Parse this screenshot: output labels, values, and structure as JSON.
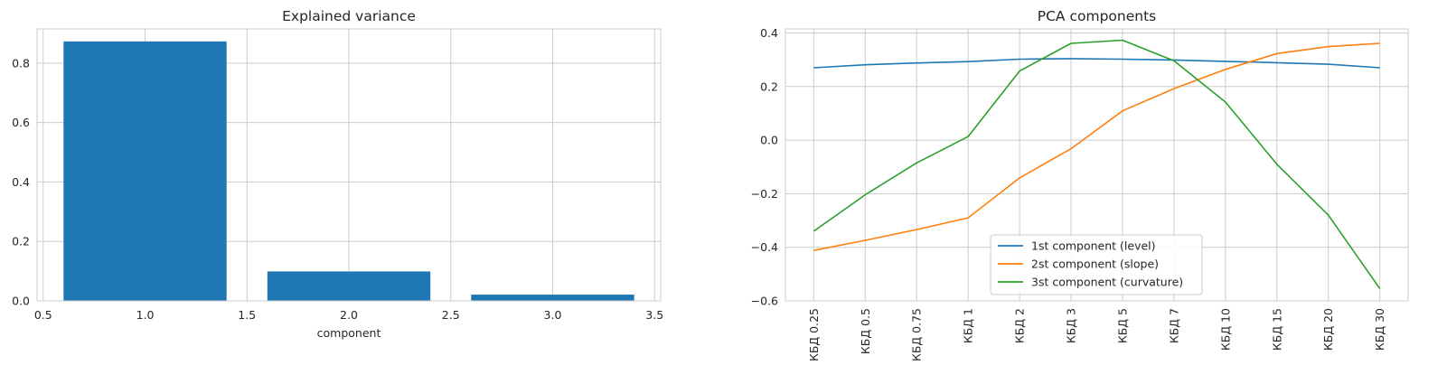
{
  "chart_data": [
    {
      "type": "bar",
      "title": "Explained variance",
      "xlabel": "component",
      "ylabel": "",
      "categories": [
        1.0,
        2.0,
        3.0
      ],
      "values": [
        0.873,
        0.099,
        0.021
      ],
      "bar_width": 0.8,
      "xlim": [
        0.47,
        3.53
      ],
      "ylim": [
        0,
        0.915
      ],
      "xticks": [
        0.5,
        1.0,
        1.5,
        2.0,
        2.5,
        3.0,
        3.5
      ],
      "xtick_labels": [
        "0.5",
        "1.0",
        "1.5",
        "2.0",
        "2.5",
        "3.0",
        "3.5"
      ],
      "yticks": [
        0.0,
        0.2,
        0.4,
        0.6,
        0.8
      ],
      "ytick_labels": [
        "0.0",
        "0.2",
        "0.4",
        "0.6",
        "0.8"
      ],
      "grid": true,
      "bar_color": "#1f77b4"
    },
    {
      "type": "line",
      "title": "PCA components",
      "xlabel": "",
      "ylabel": "",
      "categories": [
        "КБД 0.25",
        "КБД 0.5",
        "КБД 0.75",
        "КБД 1",
        "КБД 2",
        "КБД 3",
        "КБД 5",
        "КБД 7",
        "КБД 10",
        "КБД 15",
        "КБД 20",
        "КБД 30"
      ],
      "series": [
        {
          "name": "1st component (level)",
          "color": "#1f77b4",
          "values": [
            0.27,
            0.281,
            0.288,
            0.293,
            0.302,
            0.304,
            0.302,
            0.299,
            0.294,
            0.289,
            0.283,
            0.27
          ]
        },
        {
          "name": "2st component (slope)",
          "color": "#ff7f0e",
          "values": [
            -0.412,
            -0.374,
            -0.334,
            -0.29,
            -0.141,
            -0.032,
            0.109,
            0.192,
            0.264,
            0.323,
            0.349,
            0.361
          ]
        },
        {
          "name": "3st component (curvature)",
          "color": "#2ca02c",
          "values": [
            -0.34,
            -0.204,
            -0.085,
            0.013,
            0.258,
            0.361,
            0.373,
            0.296,
            0.142,
            -0.09,
            -0.28,
            -0.554
          ]
        }
      ],
      "ylim": [
        -0.6,
        0.415
      ],
      "yticks": [
        -0.6,
        -0.4,
        -0.2,
        0.0,
        0.2,
        0.4
      ],
      "ytick_labels": [
        "−0.6",
        "−0.4",
        "−0.2",
        "0.0",
        "0.2",
        "0.4"
      ],
      "grid": true,
      "legend_position": "lower-center"
    }
  ]
}
